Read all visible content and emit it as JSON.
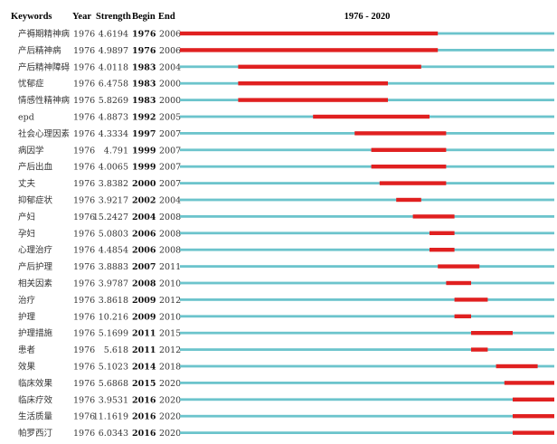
{
  "chart_data": {
    "type": "table",
    "title": "1976 - 2020",
    "headers": {
      "keywords": "Keywords",
      "year": "Year",
      "strength": "Strength",
      "begin": "Begin",
      "end": "End",
      "range": "1976 - 2020"
    },
    "timeline": {
      "start": 1976,
      "end": 2020
    },
    "colors": {
      "base": "#6cc4cc",
      "burst": "#e02020"
    },
    "rows": [
      {
        "keyword": "产褥期精神病",
        "year": "1976",
        "strength": "4.6194",
        "begin": "1976",
        "end": "2006"
      },
      {
        "keyword": "产后精神病",
        "year": "1976",
        "strength": "4.9897",
        "begin": "1976",
        "end": "2006"
      },
      {
        "keyword": "产后精神障碍",
        "year": "1976",
        "strength": "4.0118",
        "begin": "1983",
        "end": "2004"
      },
      {
        "keyword": "忧郁症",
        "year": "1976",
        "strength": "6.4758",
        "begin": "1983",
        "end": "2000"
      },
      {
        "keyword": "情感性精神病",
        "year": "1976",
        "strength": "5.8269",
        "begin": "1983",
        "end": "2000"
      },
      {
        "keyword": "epd",
        "year": "1976",
        "strength": "4.8873",
        "begin": "1992",
        "end": "2005"
      },
      {
        "keyword": "社会心理因素",
        "year": "1976",
        "strength": "4.3334",
        "begin": "1997",
        "end": "2007"
      },
      {
        "keyword": "病因学",
        "year": "1976",
        "strength": "4.791",
        "begin": "1999",
        "end": "2007"
      },
      {
        "keyword": "产后出血",
        "year": "1976",
        "strength": "4.0065",
        "begin": "1999",
        "end": "2007"
      },
      {
        "keyword": "丈夫",
        "year": "1976",
        "strength": "3.8382",
        "begin": "2000",
        "end": "2007"
      },
      {
        "keyword": "抑郁症状",
        "year": "1976",
        "strength": "3.9217",
        "begin": "2002",
        "end": "2004"
      },
      {
        "keyword": "产妇",
        "year": "1976",
        "strength": "15.2427",
        "begin": "2004",
        "end": "2008"
      },
      {
        "keyword": "孕妇",
        "year": "1976",
        "strength": "5.0803",
        "begin": "2006",
        "end": "2008"
      },
      {
        "keyword": "心理治疗",
        "year": "1976",
        "strength": "4.4854",
        "begin": "2006",
        "end": "2008"
      },
      {
        "keyword": "产后护理",
        "year": "1976",
        "strength": "3.8883",
        "begin": "2007",
        "end": "2011"
      },
      {
        "keyword": "相关因素",
        "year": "1976",
        "strength": "3.9787",
        "begin": "2008",
        "end": "2010"
      },
      {
        "keyword": "治疗",
        "year": "1976",
        "strength": "3.8618",
        "begin": "2009",
        "end": "2012"
      },
      {
        "keyword": "护理",
        "year": "1976",
        "strength": "10.216",
        "begin": "2009",
        "end": "2010"
      },
      {
        "keyword": "护理措施",
        "year": "1976",
        "strength": "5.1699",
        "begin": "2011",
        "end": "2015"
      },
      {
        "keyword": "患者",
        "year": "1976",
        "strength": "5.618",
        "begin": "2011",
        "end": "2012"
      },
      {
        "keyword": "效果",
        "year": "1976",
        "strength": "5.1023",
        "begin": "2014",
        "end": "2018"
      },
      {
        "keyword": "临床效果",
        "year": "1976",
        "strength": "5.6868",
        "begin": "2015",
        "end": "2020"
      },
      {
        "keyword": "临床疗效",
        "year": "1976",
        "strength": "3.9531",
        "begin": "2016",
        "end": "2020"
      },
      {
        "keyword": "生活质量",
        "year": "1976",
        "strength": "11.1619",
        "begin": "2016",
        "end": "2020"
      },
      {
        "keyword": "帕罗西汀",
        "year": "1976",
        "strength": "6.0343",
        "begin": "2016",
        "end": "2020"
      }
    ]
  }
}
